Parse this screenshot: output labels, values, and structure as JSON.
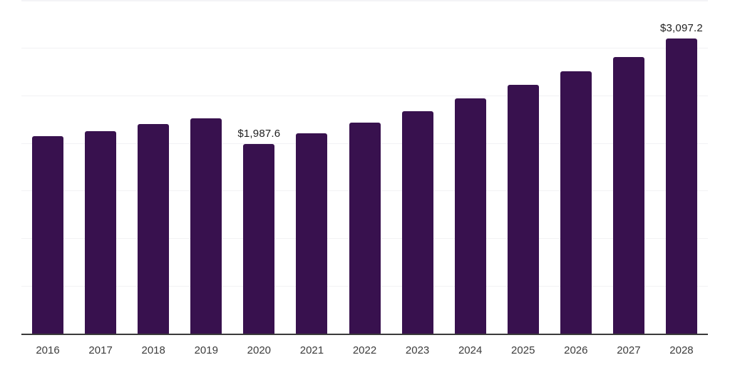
{
  "chart_data": {
    "type": "bar",
    "title": "",
    "xlabel": "",
    "ylabel": "",
    "categories": [
      "2016",
      "2017",
      "2018",
      "2019",
      "2020",
      "2021",
      "2022",
      "2023",
      "2024",
      "2025",
      "2026",
      "2027",
      "2028"
    ],
    "values": [
      2075,
      2125,
      2195,
      2260,
      1987.6,
      2100,
      2215,
      2335,
      2470,
      2610,
      2755,
      2905,
      3097.2
    ],
    "value_labels": {
      "2020": "$1,987.6",
      "2028": "$3,097.2"
    },
    "ylim": [
      0,
      3500
    ],
    "gridline_step": 500,
    "grid": "horizontal-only",
    "legend_position": "none",
    "colors": {
      "bar": "#38114e",
      "axis": "#3a3a3a",
      "gridline": "#f2f2f4",
      "top_gridline": "#f4f4f6",
      "tick_label": "#3c3c3c",
      "data_label": "#1f1f1f",
      "background": "#ffffff"
    }
  }
}
